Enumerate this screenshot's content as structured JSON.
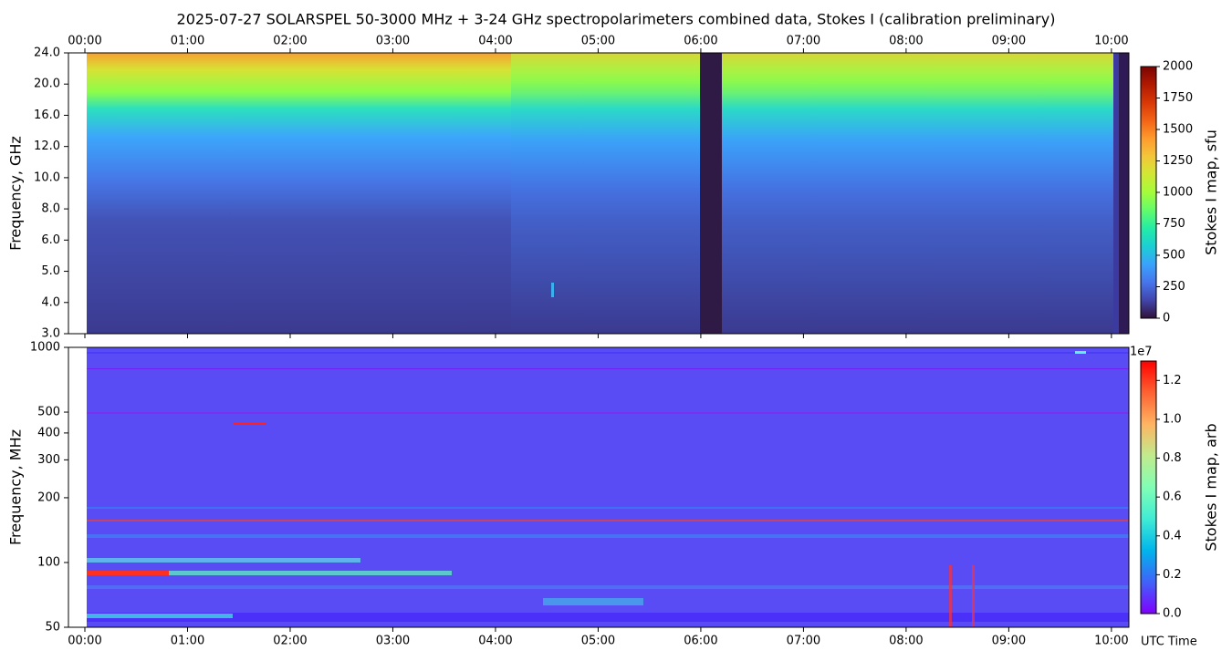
{
  "chart_data": [
    {
      "type": "heatmap",
      "title": "2025-07-27  SOLARSPEL  50-3000 MHz  +  3-24 GHz  spectropolarimeters combined data,  Stokes I  (calibration preliminary)",
      "y_label": "Frequency, GHz",
      "xlim": [
        -0.16,
        10.17
      ],
      "xticks": [
        {
          "value": 0,
          "label": "00:00"
        },
        {
          "value": 1,
          "label": "01:00"
        },
        {
          "value": 2,
          "label": "02:00"
        },
        {
          "value": 3,
          "label": "03:00"
        },
        {
          "value": 4,
          "label": "04:00"
        },
        {
          "value": 5,
          "label": "05:00"
        },
        {
          "value": 6,
          "label": "06:00"
        },
        {
          "value": 7,
          "label": "07:00"
        },
        {
          "value": 8,
          "label": "08:00"
        },
        {
          "value": 9,
          "label": "09:00"
        },
        {
          "value": 10,
          "label": "10:00"
        }
      ],
      "yticks": [
        {
          "value": 3,
          "label": "3.0"
        },
        {
          "value": 4,
          "label": "4.0"
        },
        {
          "value": 5,
          "label": "5.0"
        },
        {
          "value": 6,
          "label": "6.0"
        },
        {
          "value": 8,
          "label": "8.0"
        },
        {
          "value": 10,
          "label": "10.0"
        },
        {
          "value": 12,
          "label": "12.0"
        },
        {
          "value": 16,
          "label": "16.0"
        },
        {
          "value": 20,
          "label": "20.0"
        },
        {
          "value": 24,
          "label": "24.0"
        }
      ],
      "colorbar": {
        "label": "Stokes I map, sfu",
        "lim": [
          0,
          2000
        ],
        "ticks": [
          0,
          250,
          500,
          750,
          1000,
          1250,
          1500,
          1750,
          2000
        ],
        "colors": [
          "#30123b",
          "#4145ab",
          "#4675ed",
          "#39a2fc",
          "#1bcfd4",
          "#24eca6",
          "#61fc6c",
          "#a4fc3b",
          "#d1e834",
          "#f3c63a",
          "#fe9b2d",
          "#f36315",
          "#d93806",
          "#b11901",
          "#7a0402"
        ]
      }
    },
    {
      "type": "heatmap",
      "y_label": "Frequency, MHz",
      "x_label": "UTC Time",
      "log": true,
      "xlim": [
        -0.16,
        10.17
      ],
      "xticks": [
        {
          "value": 0,
          "label": "00:00"
        },
        {
          "value": 1,
          "label": "01:00"
        },
        {
          "value": 2,
          "label": "02:00"
        },
        {
          "value": 3,
          "label": "03:00"
        },
        {
          "value": 4,
          "label": "04:00"
        },
        {
          "value": 5,
          "label": "05:00"
        },
        {
          "value": 6,
          "label": "06:00"
        },
        {
          "value": 7,
          "label": "07:00"
        },
        {
          "value": 8,
          "label": "08:00"
        },
        {
          "value": 9,
          "label": "09:00"
        },
        {
          "value": 10,
          "label": "10:00"
        }
      ],
      "ylim": [
        50,
        1000
      ],
      "yticks": [
        50,
        100,
        200,
        300,
        400,
        500,
        1000
      ],
      "colorbar": {
        "label": "Stokes I map, arb",
        "offset": "1e7",
        "lim": [
          0,
          1.3
        ],
        "ticks": [
          {
            "value": 0,
            "label": "0.0"
          },
          {
            "value": 0.2,
            "label": "0.2"
          },
          {
            "value": 0.4,
            "label": "0.4"
          },
          {
            "value": 0.6,
            "label": "0.6"
          },
          {
            "value": 0.8,
            "label": "0.8"
          },
          {
            "value": 1.0,
            "label": "1.0"
          },
          {
            "value": 1.2,
            "label": "1.2"
          }
        ],
        "colors": [
          "#8000ff",
          "#4062fa",
          "#00b5eb",
          "#40ecd4",
          "#80ffb4",
          "#c0eb8d",
          "#ffb462",
          "#ff6232",
          "#ff0000"
        ]
      }
    }
  ]
}
